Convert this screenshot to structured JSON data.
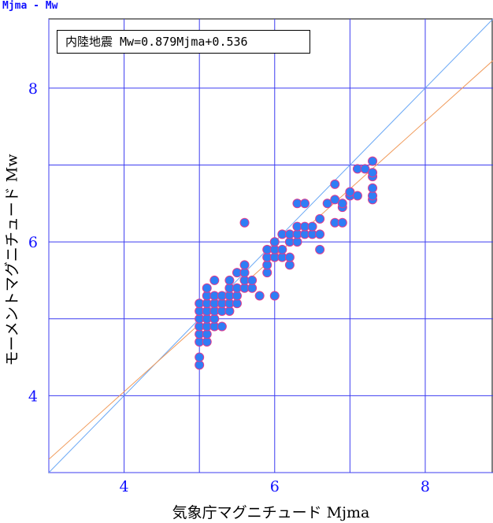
{
  "chart_data": {
    "type": "scatter",
    "title": "Mjma - Mw",
    "annotation": "内陸地震  Mw=0.879Mjma+0.536",
    "xlabel": "気象庁マグニチュード Mjma",
    "ylabel": "モーメントマグニチュード Mw",
    "xlim": [
      3,
      8.9
    ],
    "ylim": [
      3,
      8.9
    ],
    "xticks": [
      4,
      6,
      8
    ],
    "yticks": [
      4,
      6,
      8
    ],
    "grid": true,
    "colors": {
      "points": "#2f7df5",
      "point_edge": "#e03a8f",
      "grid": "#3c3cf0",
      "axis_text": "#1010ff",
      "line_one_to_one": "#6aa8f5",
      "line_regression": "#f09a5a"
    },
    "lines": [
      {
        "kind": "one-to-one",
        "slope": 1.0,
        "intercept": 0.0
      },
      {
        "kind": "regression",
        "slope": 0.879,
        "intercept": 0.536
      }
    ],
    "points": [
      [
        5.0,
        4.4
      ],
      [
        5.0,
        4.5
      ],
      [
        5.0,
        4.7
      ],
      [
        5.0,
        4.8
      ],
      [
        5.0,
        4.9
      ],
      [
        5.0,
        5.0
      ],
      [
        5.0,
        5.1
      ],
      [
        5.0,
        5.2
      ],
      [
        5.1,
        4.7
      ],
      [
        5.1,
        4.8
      ],
      [
        5.1,
        4.9
      ],
      [
        5.1,
        5.0
      ],
      [
        5.1,
        5.1
      ],
      [
        5.1,
        5.2
      ],
      [
        5.1,
        5.3
      ],
      [
        5.1,
        5.4
      ],
      [
        5.2,
        4.9
      ],
      [
        5.2,
        5.0
      ],
      [
        5.2,
        5.1
      ],
      [
        5.2,
        5.2
      ],
      [
        5.2,
        5.3
      ],
      [
        5.2,
        5.5
      ],
      [
        5.3,
        4.9
      ],
      [
        5.3,
        5.1
      ],
      [
        5.3,
        5.2
      ],
      [
        5.3,
        5.3
      ],
      [
        5.4,
        5.1
      ],
      [
        5.4,
        5.2
      ],
      [
        5.4,
        5.3
      ],
      [
        5.4,
        5.4
      ],
      [
        5.4,
        5.5
      ],
      [
        5.5,
        5.2
      ],
      [
        5.5,
        5.3
      ],
      [
        5.5,
        5.4
      ],
      [
        5.5,
        5.6
      ],
      [
        5.6,
        5.4
      ],
      [
        5.6,
        5.5
      ],
      [
        5.6,
        5.6
      ],
      [
        5.6,
        5.7
      ],
      [
        5.6,
        6.25
      ],
      [
        5.7,
        5.4
      ],
      [
        5.7,
        5.5
      ],
      [
        5.8,
        5.3
      ],
      [
        5.9,
        5.6
      ],
      [
        5.9,
        5.7
      ],
      [
        5.9,
        5.8
      ],
      [
        5.9,
        5.9
      ],
      [
        6.0,
        5.3
      ],
      [
        6.0,
        5.8
      ],
      [
        6.0,
        5.9
      ],
      [
        6.0,
        6.0
      ],
      [
        6.1,
        5.8
      ],
      [
        6.1,
        5.9
      ],
      [
        6.1,
        6.1
      ],
      [
        6.2,
        5.7
      ],
      [
        6.2,
        5.8
      ],
      [
        6.2,
        6.0
      ],
      [
        6.2,
        6.1
      ],
      [
        6.3,
        6.0
      ],
      [
        6.3,
        6.1
      ],
      [
        6.3,
        6.2
      ],
      [
        6.3,
        6.5
      ],
      [
        6.4,
        6.1
      ],
      [
        6.4,
        6.2
      ],
      [
        6.4,
        6.5
      ],
      [
        6.5,
        6.1
      ],
      [
        6.5,
        6.2
      ],
      [
        6.6,
        5.9
      ],
      [
        6.6,
        6.1
      ],
      [
        6.6,
        6.3
      ],
      [
        6.7,
        6.5
      ],
      [
        6.8,
        6.25
      ],
      [
        6.8,
        6.55
      ],
      [
        6.8,
        6.75
      ],
      [
        6.9,
        6.25
      ],
      [
        6.9,
        6.45
      ],
      [
        6.9,
        6.5
      ],
      [
        7.0,
        6.6
      ],
      [
        7.0,
        6.65
      ],
      [
        7.1,
        6.6
      ],
      [
        7.1,
        6.95
      ],
      [
        7.2,
        6.95
      ],
      [
        7.3,
        6.55
      ],
      [
        7.3,
        6.6
      ],
      [
        7.3,
        6.7
      ],
      [
        7.3,
        6.85
      ],
      [
        7.3,
        6.9
      ],
      [
        7.3,
        7.05
      ]
    ]
  }
}
